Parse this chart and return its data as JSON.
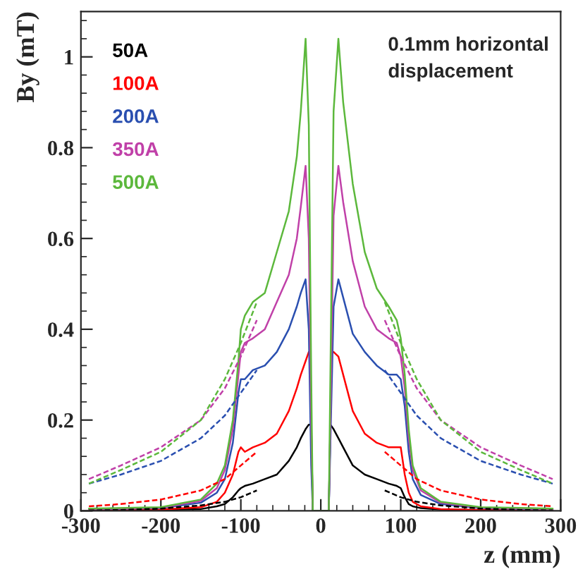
{
  "chart_data": {
    "type": "line",
    "xlabel": "z (mm)",
    "ylabel": "By (mT)",
    "annotations": [
      "0.1mm horizontal\ndisplacement"
    ],
    "xlim": [
      -300,
      300
    ],
    "ylim": [
      0,
      1.1
    ],
    "xticks": [
      -300,
      -200,
      -100,
      0,
      100,
      200,
      300
    ],
    "yticks": [
      0,
      0.2,
      0.4,
      0.6,
      0.8,
      1
    ],
    "legend": "top left",
    "grid": false,
    "line_style": "solid",
    "x": [
      -290,
      -200,
      -150,
      -130,
      -120,
      -110,
      -103,
      -100,
      -95,
      -85,
      -70,
      -55,
      -40,
      -30,
      -25,
      -19,
      -15,
      -12,
      -10,
      10,
      12,
      16,
      22,
      28,
      40,
      55,
      70,
      85,
      95,
      100,
      105,
      110,
      115,
      125,
      150,
      200,
      290
    ],
    "series": [
      {
        "name": "50A",
        "color": "#000000",
        "values": [
          0.001,
          0.002,
          0.004,
          0.01,
          0.015,
          0.03,
          0.045,
          0.05,
          0.055,
          0.06,
          0.07,
          0.08,
          0.11,
          0.14,
          0.16,
          0.18,
          0.19,
          0.19,
          0,
          0,
          0.19,
          0.18,
          0.16,
          0.14,
          0.1,
          0.08,
          0.07,
          0.06,
          0.055,
          0.05,
          0.03,
          0.015,
          0.01,
          0.006,
          0.003,
          0.002,
          0.001
        ]
      },
      {
        "name": "100A",
        "color": "#ff0000",
        "values": [
          0.002,
          0.003,
          0.008,
          0.02,
          0.04,
          0.08,
          0.13,
          0.14,
          0.13,
          0.14,
          0.15,
          0.17,
          0.22,
          0.27,
          0.3,
          0.33,
          0.35,
          null,
          0,
          0,
          null,
          0.35,
          0.34,
          0.3,
          0.22,
          0.17,
          0.15,
          0.14,
          0.14,
          0.14,
          0.08,
          0.04,
          0.02,
          0.01,
          0.004,
          0.002,
          0.001
        ]
      },
      {
        "name": "200A",
        "color": "#2a4fb0",
        "values": [
          0.003,
          0.006,
          0.018,
          0.04,
          0.07,
          0.15,
          0.26,
          0.29,
          0.29,
          0.31,
          0.32,
          0.35,
          0.4,
          0.45,
          0.48,
          0.51,
          0.4,
          0.1,
          0,
          0,
          0.15,
          0.45,
          0.51,
          0.47,
          0.39,
          0.35,
          0.32,
          0.3,
          0.3,
          0.29,
          0.23,
          0.13,
          0.07,
          0.035,
          0.015,
          0.006,
          0.003
        ]
      },
      {
        "name": "350A",
        "color": "#c040a8",
        "values": [
          0.004,
          0.007,
          0.022,
          0.05,
          0.09,
          0.18,
          0.3,
          0.35,
          0.37,
          0.38,
          0.4,
          0.46,
          0.52,
          0.6,
          0.67,
          0.76,
          0.6,
          0.2,
          0,
          0,
          0.2,
          0.65,
          0.76,
          0.68,
          0.55,
          0.45,
          0.4,
          0.38,
          0.37,
          0.34,
          0.27,
          0.16,
          0.09,
          0.045,
          0.018,
          0.007,
          0.004
        ]
      },
      {
        "name": "500A",
        "color": "#5cb83c",
        "values": [
          0.005,
          0.008,
          0.025,
          0.06,
          0.1,
          0.2,
          0.33,
          0.4,
          0.43,
          0.46,
          0.48,
          0.57,
          0.66,
          0.78,
          0.88,
          1.04,
          0.85,
          0.3,
          0,
          0,
          0.3,
          0.88,
          1.04,
          0.9,
          0.72,
          0.57,
          0.49,
          0.45,
          0.42,
          0.38,
          0.3,
          0.18,
          0.1,
          0.05,
          0.02,
          0.008,
          0.005
        ]
      },
      {
        "color": "#000000",
        "line_style": "dashed",
        "x": [
          -290,
          -250,
          -200,
          -150,
          -120,
          -100,
          -80,
          0,
          80,
          100,
          120,
          150,
          200,
          250,
          290
        ],
        "values": [
          0.001,
          0.002,
          0.005,
          0.012,
          0.02,
          0.03,
          0.045,
          null,
          0.045,
          0.03,
          0.02,
          0.012,
          0.005,
          0.002,
          0.001
        ]
      },
      {
        "color": "#ff0000",
        "line_style": "dashed",
        "x": [
          -290,
          -250,
          -200,
          -150,
          -120,
          -100,
          -80,
          0,
          80,
          100,
          120,
          150,
          200,
          250,
          290
        ],
        "values": [
          0.01,
          0.015,
          0.025,
          0.045,
          0.07,
          0.1,
          0.13,
          null,
          0.13,
          0.1,
          0.07,
          0.045,
          0.025,
          0.015,
          0.01
        ]
      },
      {
        "color": "#2a4fb0",
        "line_style": "dashed",
        "x": [
          -290,
          -250,
          -200,
          -150,
          -120,
          -100,
          -80,
          0,
          80,
          100,
          120,
          150,
          200,
          250,
          290
        ],
        "values": [
          0.06,
          0.08,
          0.11,
          0.16,
          0.21,
          0.26,
          0.31,
          null,
          0.31,
          0.26,
          0.21,
          0.16,
          0.11,
          0.08,
          0.06
        ]
      },
      {
        "color": "#c040a8",
        "line_style": "dashed",
        "x": [
          -290,
          -250,
          -200,
          -150,
          -120,
          -100,
          -80,
          0,
          80,
          100,
          120,
          150,
          200,
          250,
          290
        ],
        "values": [
          0.07,
          0.1,
          0.14,
          0.2,
          0.27,
          0.34,
          0.42,
          null,
          0.42,
          0.34,
          0.27,
          0.2,
          0.14,
          0.1,
          0.07
        ]
      },
      {
        "color": "#5cb83c",
        "line_style": "dashed",
        "x": [
          -290,
          -250,
          -200,
          -150,
          -120,
          -100,
          -80,
          0,
          80,
          100,
          120,
          150,
          200,
          250,
          290
        ],
        "values": [
          0.06,
          0.09,
          0.13,
          0.2,
          0.29,
          0.37,
          0.46,
          null,
          0.46,
          0.37,
          0.29,
          0.2,
          0.13,
          0.09,
          0.06
        ]
      }
    ]
  }
}
